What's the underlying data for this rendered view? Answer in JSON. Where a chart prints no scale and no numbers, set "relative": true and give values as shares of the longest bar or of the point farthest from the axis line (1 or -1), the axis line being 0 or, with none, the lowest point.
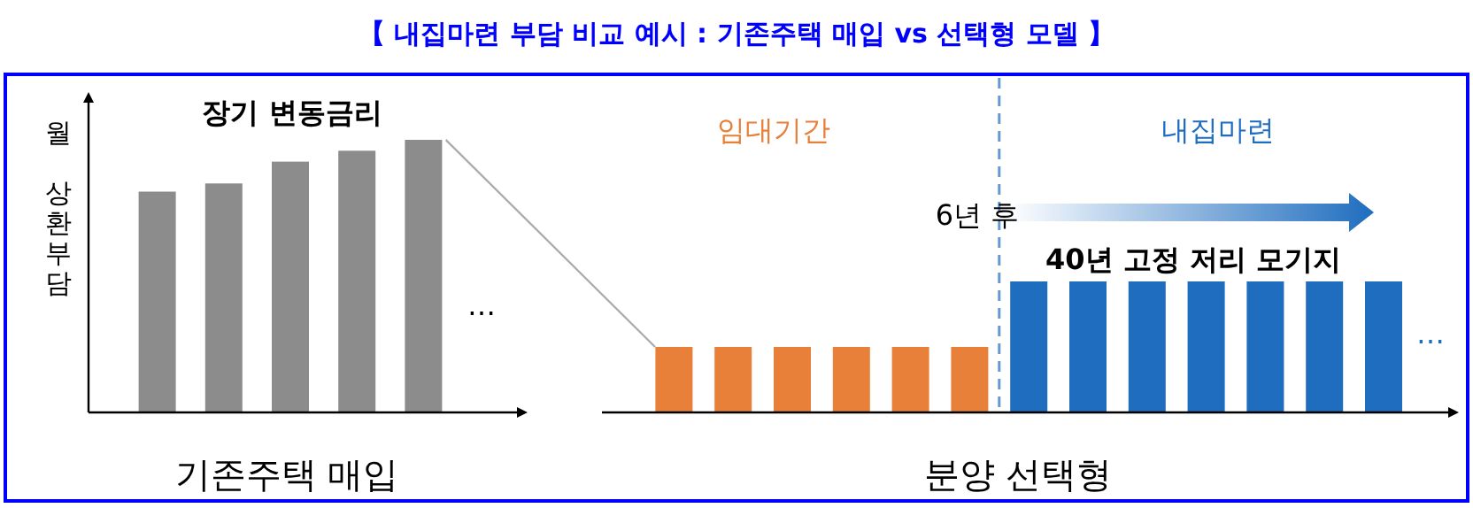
{
  "chart_data": [
    {
      "type": "bar",
      "title": "【 내집마련 부담 비교 예시 : 기존주택 매입 vs 선택형 모델 】",
      "subtitle": "장기 변동금리",
      "ylabel": "월 상환부담",
      "xlabel": "기존주택 매입",
      "relative": true,
      "categories": [
        null,
        null,
        null,
        null,
        null
      ],
      "values": [
        0.81,
        0.84,
        0.92,
        0.96,
        1
      ],
      "color": "#8c8c8c",
      "annotations": [
        "…"
      ]
    },
    {
      "type": "bar",
      "xlabel": "분양 선택형",
      "relative": true,
      "categories": [
        null,
        null,
        null,
        null,
        null,
        null,
        null,
        null,
        null,
        null,
        null,
        null,
        null
      ],
      "values": [
        0.5,
        0.5,
        0.5,
        0.5,
        0.5,
        0.5,
        1,
        1,
        1,
        1,
        1,
        1,
        1
      ],
      "colors": [
        "#e8803a",
        "#e8803a",
        "#e8803a",
        "#e8803a",
        "#e8803a",
        "#e8803a",
        "#1f6dbf",
        "#1f6dbf",
        "#1f6dbf",
        "#1f6dbf",
        "#1f6dbf",
        "#1f6dbf",
        "#1f6dbf"
      ],
      "annotations": [
        "임대기간",
        "내집마련",
        "6년 후",
        "40년 고정 저리 모기지",
        "…"
      ]
    }
  ]
}
